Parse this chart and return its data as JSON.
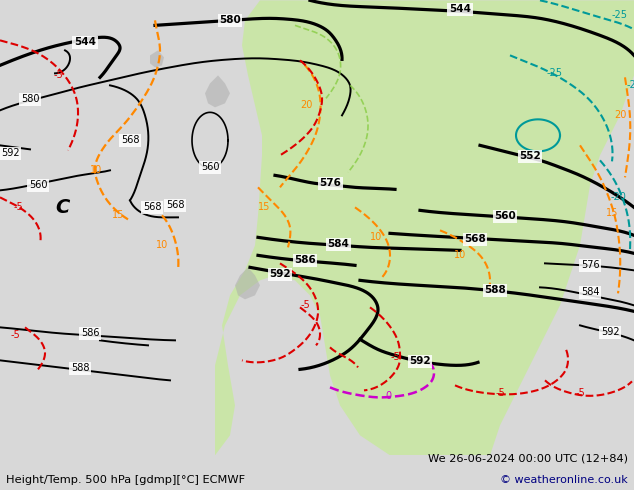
{
  "title_left": "Height/Temp. 500 hPa [gdmp][°C] ECMWF",
  "title_right": "We 26-06-2024 00:00 UTC (12+84)",
  "copyright": "© weatheronline.co.uk",
  "bg_color": "#d8d8d8",
  "land_color": "#c8e8a0",
  "z500_color": "#000000",
  "temp_pos_color": "#ff8800",
  "temp_neg_color": "#dd0000",
  "temp_zero_color": "#cc00cc",
  "slp_color": "#009999",
  "figsize": [
    6.34,
    4.9
  ],
  "dpi": 100
}
